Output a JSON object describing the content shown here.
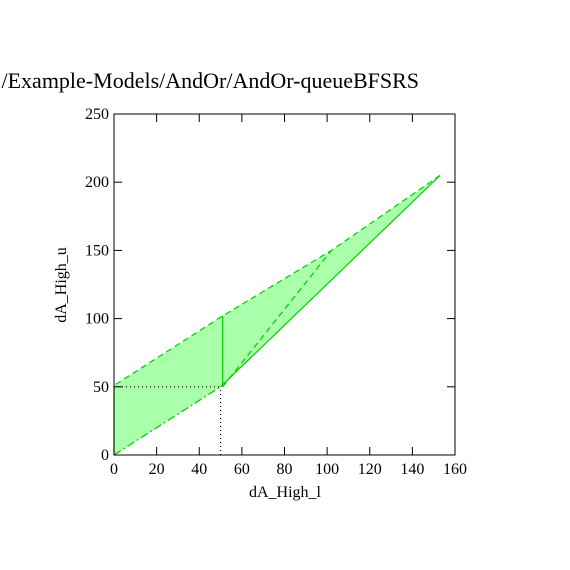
{
  "chart_data": {
    "type": "polygon",
    "title": "./Example-Models/AndOr/AndOr-queueBFSRS",
    "x_label": "dA_High_l",
    "y_label": "dA_High_u",
    "xlim": [
      0,
      160
    ],
    "ylim": [
      0,
      250
    ],
    "xticks": [
      0,
      20,
      40,
      60,
      80,
      100,
      120,
      140,
      160
    ],
    "yticks": [
      0,
      50,
      100,
      150,
      200,
      250
    ],
    "regions": [
      {
        "color": "#aaffaa",
        "x": [
          0,
          50,
          153,
          102,
          51,
          0
        ],
        "y": [
          0,
          50,
          205,
          150,
          102,
          51
        ]
      }
    ],
    "lines": [
      {
        "color": "#00cc00",
        "style": "dashdot",
        "x": [
          0,
          50
        ],
        "y": [
          0,
          50
        ]
      },
      {
        "color": "#00cc00",
        "style": "solid",
        "x": [
          50,
          153
        ],
        "y": [
          50,
          205
        ]
      },
      {
        "color": "#00cc00",
        "style": "dashed",
        "x": [
          153,
          102,
          51,
          0
        ],
        "y": [
          205,
          150,
          102,
          51
        ]
      },
      {
        "color": "#00cc00",
        "style": "solid",
        "x": [
          0,
          0
        ],
        "y": [
          51,
          0
        ]
      },
      {
        "color": "#00cc00",
        "style": "solid",
        "x": [
          51,
          51
        ],
        "y": [
          50,
          102
        ]
      },
      {
        "color": "#00cc00",
        "style": "dashed",
        "x": [
          51,
          102
        ],
        "y": [
          50,
          150
        ]
      },
      {
        "color": "#000000",
        "style": "dotted",
        "x": [
          0,
          50
        ],
        "y": [
          50,
          50
        ]
      },
      {
        "color": "#000000",
        "style": "dotted",
        "x": [
          50,
          50
        ],
        "y": [
          0,
          50
        ]
      }
    ]
  }
}
